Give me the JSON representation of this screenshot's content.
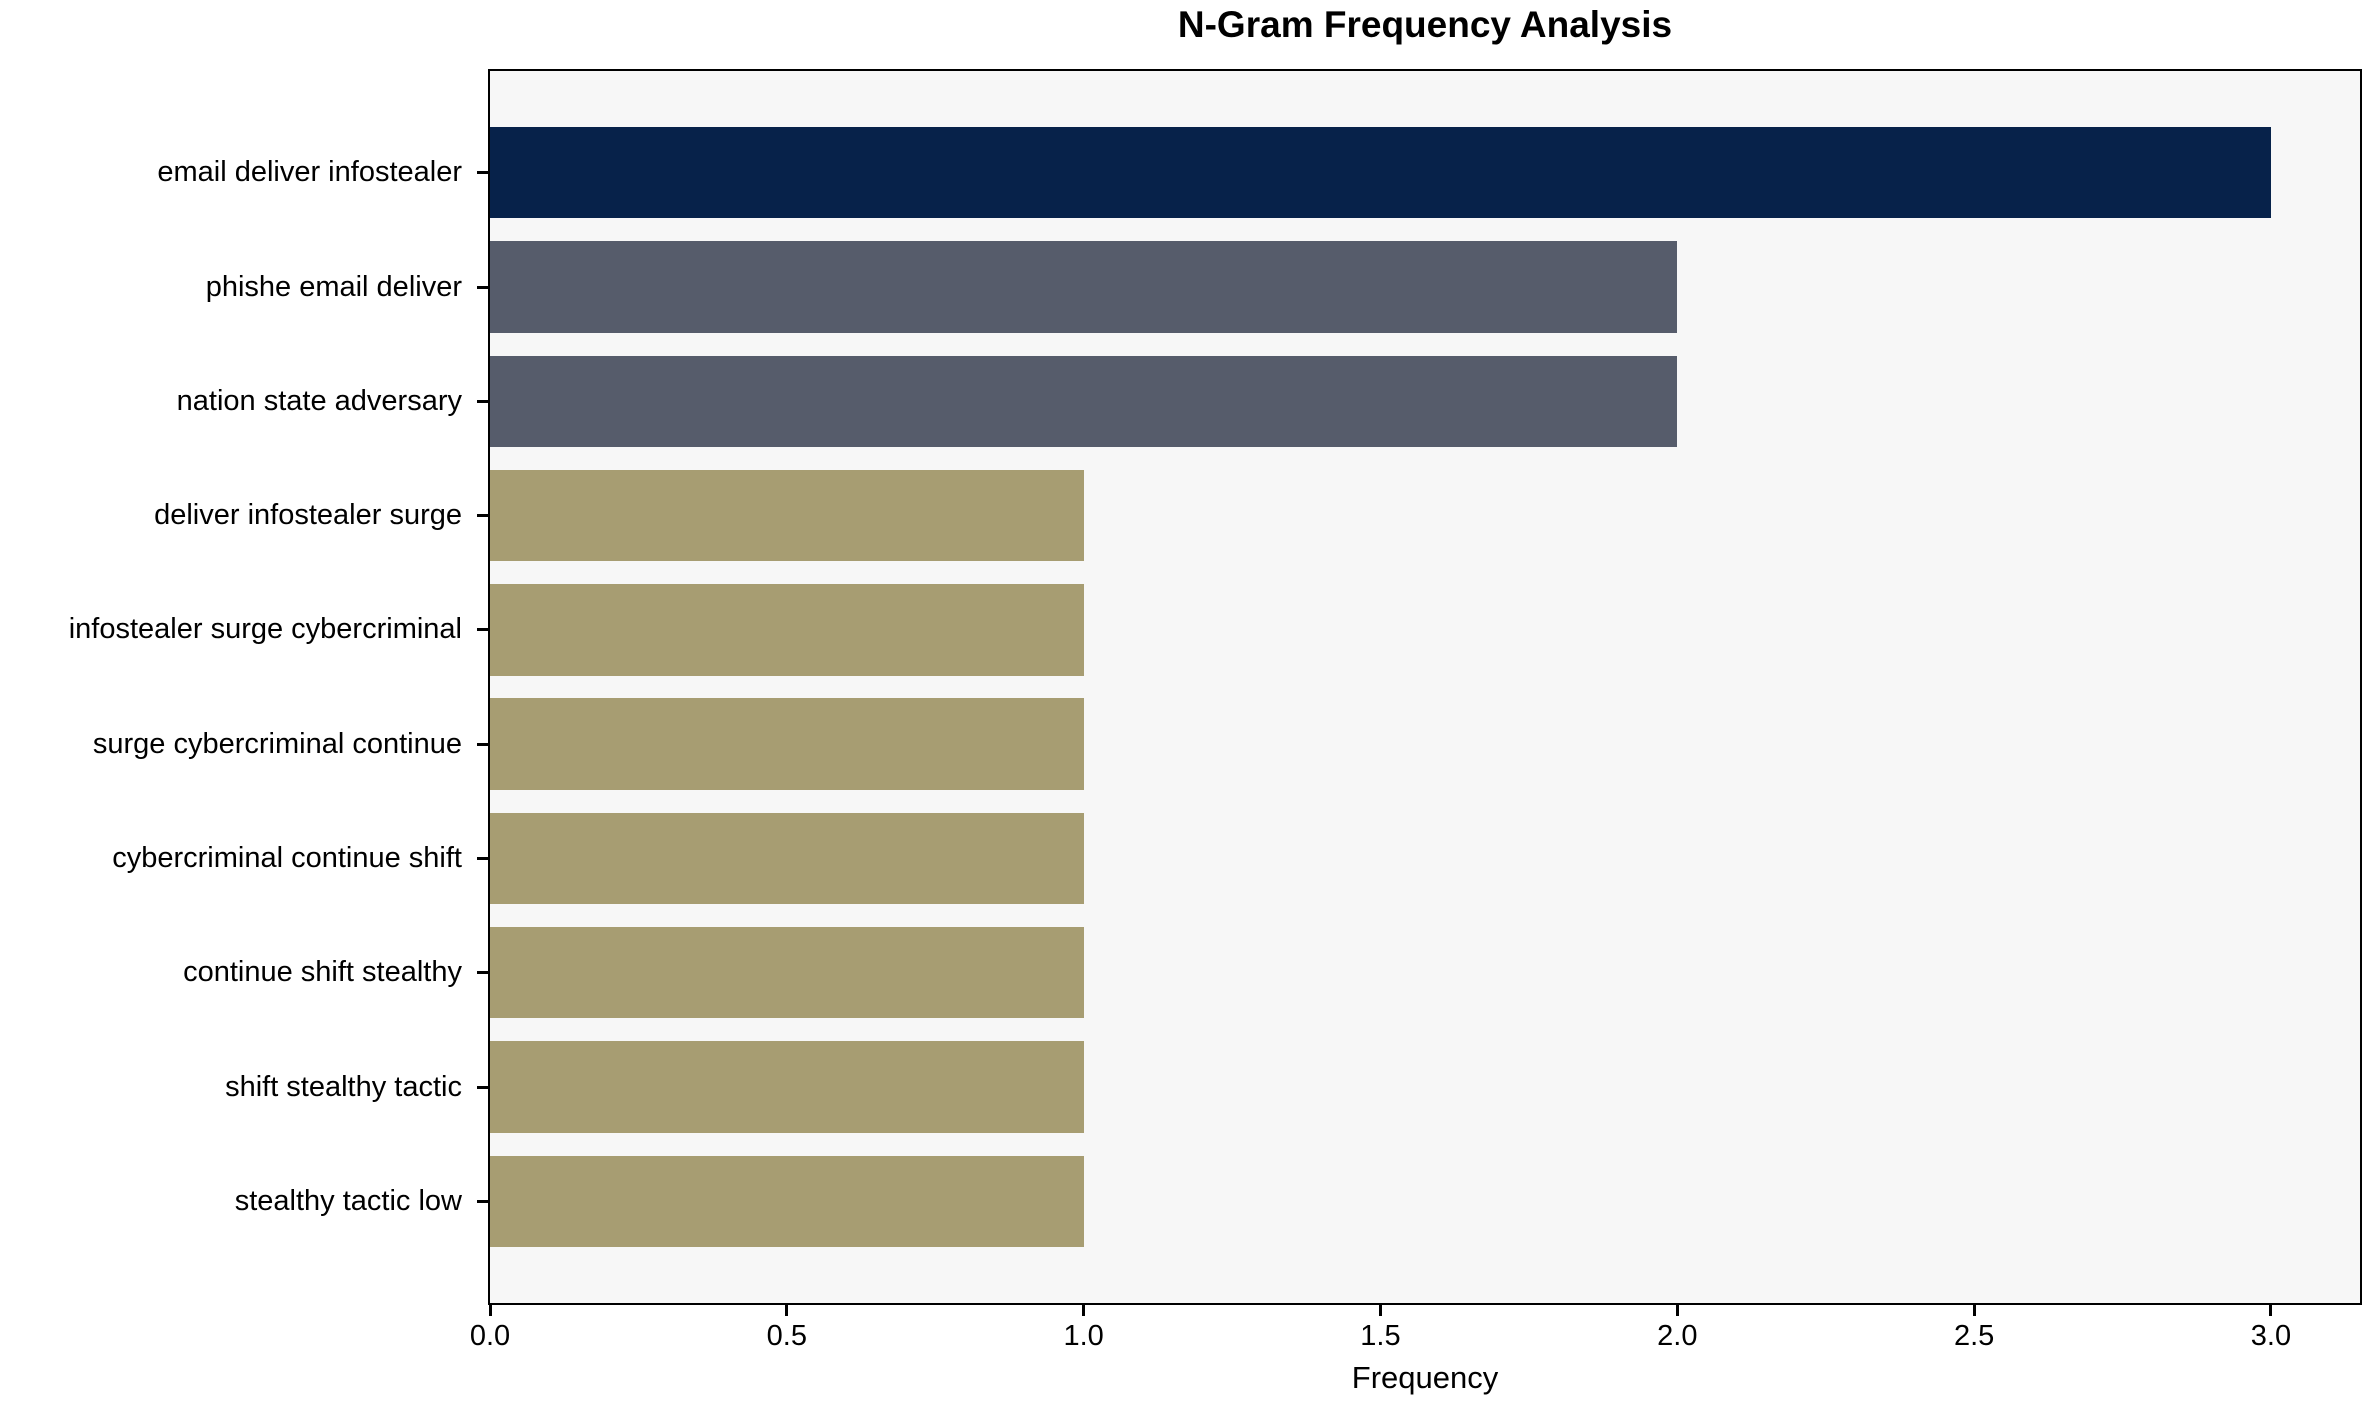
{
  "chart_data": {
    "type": "bar",
    "orientation": "horizontal",
    "title": "N-Gram Frequency Analysis",
    "xlabel": "Frequency",
    "ylabel": "",
    "categories": [
      "email deliver infostealer",
      "phishe email deliver",
      "nation state adversary",
      "deliver infostealer surge",
      "infostealer surge cybercriminal",
      "surge cybercriminal continue",
      "cybercriminal continue shift",
      "continue shift stealthy",
      "shift stealthy tactic",
      "stealthy tactic low"
    ],
    "values": [
      3,
      2,
      2,
      1,
      1,
      1,
      1,
      1,
      1,
      1
    ],
    "bar_colors": [
      "#07224a",
      "#565c6b",
      "#565c6b",
      "#a79d72",
      "#a79d72",
      "#a79d72",
      "#a79d72",
      "#a79d72",
      "#a79d72",
      "#a79d72"
    ],
    "xlim": [
      0,
      3.15
    ],
    "xticks": [
      0.0,
      0.5,
      1.0,
      1.5,
      2.0,
      2.5,
      3.0
    ],
    "xtick_labels": [
      "0.0",
      "0.5",
      "1.0",
      "1.5",
      "2.0",
      "2.5",
      "3.0"
    ],
    "grid": false,
    "legend": null,
    "colors": {
      "plot_background": "#f7f7f7",
      "figure_background": "#ffffff",
      "axis_line": "#000000",
      "text": "#000000"
    }
  }
}
